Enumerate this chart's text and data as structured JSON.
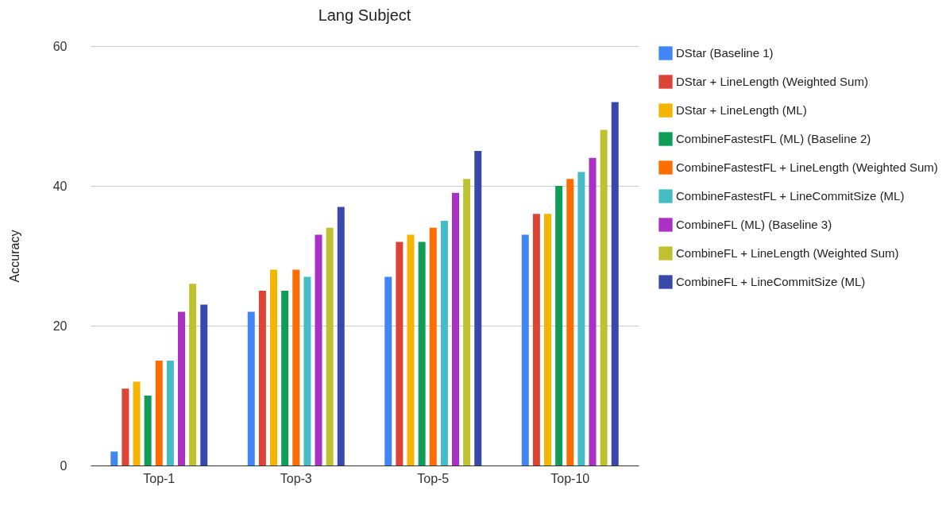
{
  "chart_data": {
    "type": "bar",
    "title": "Lang Subject",
    "ylabel": "Accuracy",
    "categories": [
      "Top-1",
      "Top-3",
      "Top-5",
      "Top-10"
    ],
    "series": [
      {
        "name": "DStar (Baseline 1)",
        "color": "#4285f4",
        "values": [
          2,
          22,
          27,
          33
        ]
      },
      {
        "name": "DStar + LineLength (Weighted Sum)",
        "color": "#db4437",
        "values": [
          11,
          25,
          32,
          36
        ]
      },
      {
        "name": "DStar + LineLength (ML)",
        "color": "#f4b400",
        "values": [
          12,
          28,
          33,
          36
        ]
      },
      {
        "name": "CombineFastestFL (ML) (Baseline 2)",
        "color": "#0f9d58",
        "values": [
          10,
          25,
          32,
          40
        ]
      },
      {
        "name": "CombineFastestFL + LineLength (Weighted Sum)",
        "color": "#ff6d01",
        "values": [
          15,
          28,
          34,
          41
        ]
      },
      {
        "name": "CombineFastestFL + LineCommitSize (ML)",
        "color": "#46bdc6",
        "values": [
          15,
          27,
          35,
          42
        ]
      },
      {
        "name": "CombineFL (ML) (Baseline 3)",
        "color": "#ab30c4",
        "values": [
          22,
          33,
          39,
          44
        ]
      },
      {
        "name": "CombineFL + LineLength (Weighted  Sum)",
        "color": "#bfc22f",
        "values": [
          26,
          34,
          41,
          48
        ]
      },
      {
        "name": "CombineFL + LineCommitSize (ML)",
        "color": "#3949ab",
        "values": [
          23,
          37,
          45,
          52
        ]
      }
    ],
    "ylim": [
      0,
      60
    ],
    "yticks": [
      0,
      20,
      40,
      60
    ],
    "grid": "y",
    "legend": "right"
  }
}
